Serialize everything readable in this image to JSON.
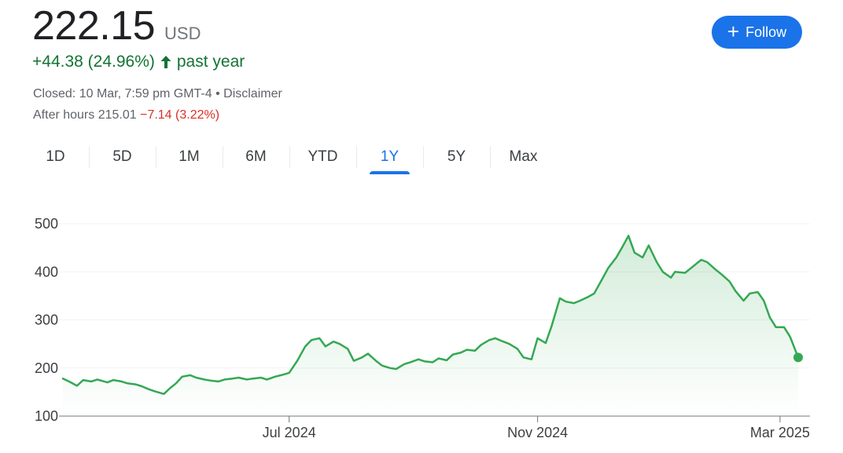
{
  "quote": {
    "price": "222.15",
    "currency": "USD",
    "change_text": "+44.38 (24.96%)",
    "period_text": "past year",
    "closed_text": "Closed: 10 Mar, 7:59 pm GMT-4 • Disclaimer",
    "after_hours_label": "After hours 215.01",
    "after_hours_change": "−7.14 (3.22%)"
  },
  "follow_button": {
    "icon": "plus-icon",
    "label": "Follow"
  },
  "tabs": [
    {
      "label": "1D",
      "active": false
    },
    {
      "label": "5D",
      "active": false
    },
    {
      "label": "1M",
      "active": false
    },
    {
      "label": "6M",
      "active": false
    },
    {
      "label": "YTD",
      "active": false
    },
    {
      "label": "1Y",
      "active": true
    },
    {
      "label": "5Y",
      "active": false
    },
    {
      "label": "Max",
      "active": false
    }
  ],
  "colors": {
    "up": "#137333",
    "down": "#d93025",
    "accent": "#1a73e8",
    "line": "#34a853"
  },
  "chart_data": {
    "type": "area",
    "title": "",
    "xlabel": "",
    "ylabel": "",
    "ylim": [
      100,
      500
    ],
    "yticks": [
      100,
      200,
      300,
      400,
      500
    ],
    "grid": true,
    "x_tick_labels": [
      {
        "label": "Jul 2024",
        "date": "2024-07-01"
      },
      {
        "label": "Nov 2024",
        "date": "2024-11-01"
      },
      {
        "label": "Mar 2025",
        "date": "2025-03-01"
      }
    ],
    "x_range": [
      "2024-03-11",
      "2025-03-10"
    ],
    "series": [
      {
        "values": [
          [
            "2024-03-11",
            178
          ],
          [
            "2024-03-14",
            172
          ],
          [
            "2024-03-18",
            163
          ],
          [
            "2024-03-21",
            175
          ],
          [
            "2024-03-25",
            172
          ],
          [
            "2024-03-28",
            176
          ],
          [
            "2024-04-02",
            170
          ],
          [
            "2024-04-05",
            175
          ],
          [
            "2024-04-09",
            172
          ],
          [
            "2024-04-12",
            168
          ],
          [
            "2024-04-16",
            166
          ],
          [
            "2024-04-19",
            162
          ],
          [
            "2024-04-23",
            155
          ],
          [
            "2024-04-26",
            151
          ],
          [
            "2024-04-30",
            146
          ],
          [
            "2024-05-03",
            158
          ],
          [
            "2024-05-06",
            168
          ],
          [
            "2024-05-09",
            182
          ],
          [
            "2024-05-13",
            185
          ],
          [
            "2024-05-16",
            180
          ],
          [
            "2024-05-20",
            176
          ],
          [
            "2024-05-23",
            174
          ],
          [
            "2024-05-27",
            172
          ],
          [
            "2024-05-30",
            176
          ],
          [
            "2024-06-03",
            178
          ],
          [
            "2024-06-06",
            180
          ],
          [
            "2024-06-10",
            176
          ],
          [
            "2024-06-13",
            178
          ],
          [
            "2024-06-17",
            180
          ],
          [
            "2024-06-20",
            176
          ],
          [
            "2024-06-24",
            182
          ],
          [
            "2024-06-27",
            185
          ],
          [
            "2024-07-01",
            190
          ],
          [
            "2024-07-05",
            215
          ],
          [
            "2024-07-09",
            245
          ],
          [
            "2024-07-12",
            258
          ],
          [
            "2024-07-16",
            262
          ],
          [
            "2024-07-19",
            245
          ],
          [
            "2024-07-23",
            255
          ],
          [
            "2024-07-26",
            250
          ],
          [
            "2024-07-30",
            240
          ],
          [
            "2024-08-02",
            215
          ],
          [
            "2024-08-06",
            222
          ],
          [
            "2024-08-09",
            230
          ],
          [
            "2024-08-13",
            215
          ],
          [
            "2024-08-16",
            205
          ],
          [
            "2024-08-20",
            200
          ],
          [
            "2024-08-23",
            198
          ],
          [
            "2024-08-27",
            208
          ],
          [
            "2024-08-30",
            212
          ],
          [
            "2024-09-03",
            218
          ],
          [
            "2024-09-06",
            214
          ],
          [
            "2024-09-10",
            212
          ],
          [
            "2024-09-13",
            220
          ],
          [
            "2024-09-17",
            216
          ],
          [
            "2024-09-20",
            228
          ],
          [
            "2024-09-24",
            232
          ],
          [
            "2024-09-27",
            238
          ],
          [
            "2024-10-01",
            236
          ],
          [
            "2024-10-04",
            248
          ],
          [
            "2024-10-08",
            258
          ],
          [
            "2024-10-11",
            262
          ],
          [
            "2024-10-15",
            255
          ],
          [
            "2024-10-18",
            250
          ],
          [
            "2024-10-22",
            240
          ],
          [
            "2024-10-25",
            222
          ],
          [
            "2024-10-29",
            218
          ],
          [
            "2024-11-01",
            262
          ],
          [
            "2024-11-05",
            252
          ],
          [
            "2024-11-08",
            288
          ],
          [
            "2024-11-12",
            345
          ],
          [
            "2024-11-15",
            338
          ],
          [
            "2024-11-19",
            335
          ],
          [
            "2024-11-22",
            340
          ],
          [
            "2024-11-26",
            348
          ],
          [
            "2024-11-29",
            355
          ],
          [
            "2024-12-03",
            385
          ],
          [
            "2024-12-06",
            408
          ],
          [
            "2024-12-10",
            430
          ],
          [
            "2024-12-13",
            452
          ],
          [
            "2024-12-16",
            475
          ],
          [
            "2024-12-19",
            440
          ],
          [
            "2024-12-23",
            430
          ],
          [
            "2024-12-26",
            455
          ],
          [
            "2024-12-30",
            420
          ],
          [
            "2025-01-02",
            400
          ],
          [
            "2025-01-06",
            388
          ],
          [
            "2025-01-08",
            400
          ],
          [
            "2025-01-13",
            398
          ],
          [
            "2025-01-16",
            408
          ],
          [
            "2025-01-21",
            425
          ],
          [
            "2025-01-24",
            420
          ],
          [
            "2025-01-28",
            405
          ],
          [
            "2025-01-31",
            395
          ],
          [
            "2025-02-04",
            380
          ],
          [
            "2025-02-07",
            360
          ],
          [
            "2025-02-11",
            340
          ],
          [
            "2025-02-14",
            355
          ],
          [
            "2025-02-18",
            358
          ],
          [
            "2025-02-21",
            340
          ],
          [
            "2025-02-24",
            305
          ],
          [
            "2025-02-27",
            285
          ],
          [
            "2025-03-03",
            285
          ],
          [
            "2025-03-06",
            265
          ],
          [
            "2025-03-10",
            222
          ]
        ]
      }
    ]
  }
}
